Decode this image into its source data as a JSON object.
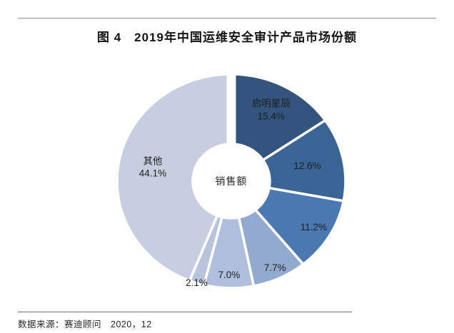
{
  "page": {
    "background": "#ffffff"
  },
  "header": {
    "title": "图 4　2019年中国运维安全审计产品市场份额"
  },
  "chart_data": {
    "type": "pie",
    "donut": true,
    "figure_number": "图 4",
    "title": "2019年中国运维安全审计产品市场份额",
    "center_label": "销售额",
    "unit": "%",
    "direction": "clockwise",
    "start_angle_deg": 0,
    "legend": "none",
    "slices": [
      {
        "name": "启明星辰",
        "value": 15.4,
        "pct_label": "15.4%",
        "color": "#32547E"
      },
      {
        "name": "",
        "value": 12.6,
        "pct_label": "12.6%",
        "color": "#3A6496"
      },
      {
        "name": "",
        "value": 11.2,
        "pct_label": "11.2%",
        "color": "#4A78B0"
      },
      {
        "name": "",
        "value": 7.7,
        "pct_label": "7.7%",
        "color": "#93AACF"
      },
      {
        "name": "",
        "value": 7.0,
        "pct_label": "7.0%",
        "color": "#AEBEDC"
      },
      {
        "name": "",
        "value": 2.1,
        "pct_label": "2.1%",
        "color": "#B9C3DC"
      },
      {
        "name": "其他",
        "value": 44.1,
        "pct_label": "44.1%",
        "color": "#C7CEE0"
      }
    ]
  },
  "footer": {
    "source": "数据来源：赛迪顾问　2020，12"
  }
}
